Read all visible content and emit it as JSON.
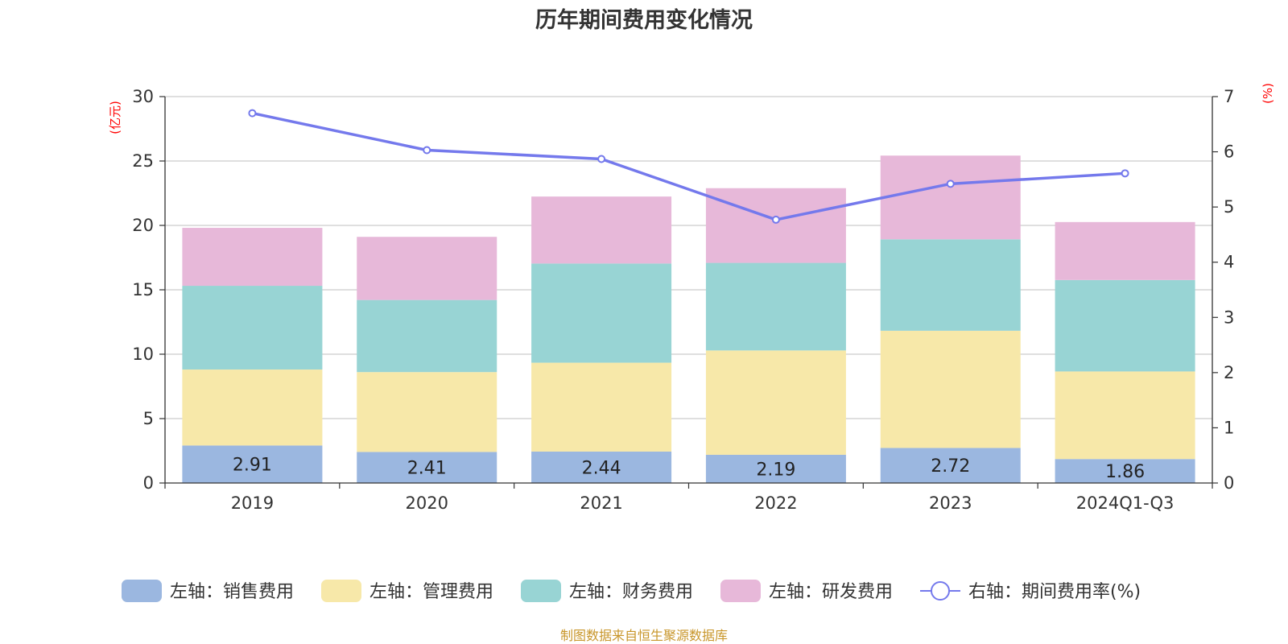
{
  "chart_data": {
    "type": "bar",
    "stacked": true,
    "title": "历年期间费用变化情况",
    "categories": [
      "2019",
      "2020",
      "2021",
      "2022",
      "2023",
      "2024Q1-Q3"
    ],
    "left_axis": {
      "unit": "(亿元)",
      "ylim": [
        0,
        30
      ],
      "ticks": [
        "0",
        "5",
        "10",
        "15",
        "20",
        "25",
        "30"
      ]
    },
    "right_axis": {
      "unit": "(%)",
      "ylim": [
        0,
        7
      ],
      "ticks": [
        "0",
        "1",
        "2",
        "3",
        "4",
        "5",
        "6",
        "7"
      ]
    },
    "series": [
      {
        "name": "左轴：销售费用",
        "axis": "left",
        "kind": "bar",
        "color": "#9bb7e0",
        "values": [
          2.91,
          2.41,
          2.44,
          2.19,
          2.72,
          1.86
        ],
        "labels": [
          "2.91",
          "2.41",
          "2.44",
          "2.19",
          "2.72",
          "1.86"
        ]
      },
      {
        "name": "左轴：管理费用",
        "axis": "left",
        "kind": "bar",
        "color": "#f7e8a9",
        "values": [
          5.9,
          6.2,
          6.9,
          8.1,
          9.1,
          6.8
        ]
      },
      {
        "name": "左轴：财务费用",
        "axis": "left",
        "kind": "bar",
        "color": "#98d4d4",
        "values": [
          6.5,
          5.6,
          7.7,
          6.8,
          7.1,
          7.1
        ]
      },
      {
        "name": "左轴：研发费用",
        "axis": "left",
        "kind": "bar",
        "color": "#e7b8d9",
        "values": [
          4.5,
          4.9,
          5.2,
          5.8,
          6.5,
          4.5
        ]
      },
      {
        "name": "右轴：期间费用率(%)",
        "axis": "right",
        "kind": "line",
        "color": "#7479ec",
        "values": [
          6.7,
          6.03,
          5.87,
          4.77,
          5.42,
          5.61
        ]
      }
    ],
    "grid": true,
    "legend_position": "bottom"
  },
  "source_note": "制图数据来自恒生聚源数据库",
  "colors": {
    "axis_unit": "#ff0000",
    "source_note": "#c8962a",
    "grid": "#cccccc",
    "axis": "#333333"
  }
}
